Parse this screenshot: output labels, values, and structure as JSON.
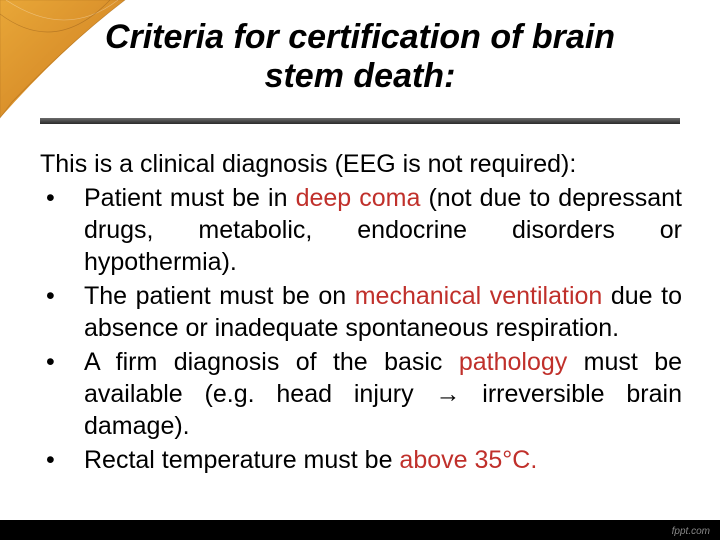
{
  "slide": {
    "title_line1": "Criteria for certification of brain",
    "title_line2": "stem death:",
    "title_fontsize": 34,
    "title_color": "#000000",
    "intro_text": "This is a clinical diagnosis (EEG is not required):",
    "body_fontsize": 25,
    "body_color": "#000000",
    "highlight_color": "#c0302b",
    "bullets": [
      {
        "pre": "Patient must be in ",
        "hl": "deep coma",
        "post": " (not due to depressant drugs, metabolic, endocrine disorders or hypothermia)."
      },
      {
        "pre": "The patient must be on ",
        "hl": "mechanical ventilation",
        "post": " due to absence or inadequate spontaneous respiration."
      },
      {
        "pre": "A firm diagnosis of the basic ",
        "hl": "pathology",
        "post": " must be available (e.g. head injury → irreversible brain damage)."
      },
      {
        "pre": "Rectal temperature must be ",
        "hl": "above 35°C.",
        "post": ""
      }
    ],
    "accent_gradient": {
      "c1": "#e8a738",
      "c2": "#d98f2a",
      "c3": "#b86e1f"
    },
    "underline_color": "#4a4a4a",
    "background_color": "#ffffff",
    "watermark": "fppt.com"
  }
}
